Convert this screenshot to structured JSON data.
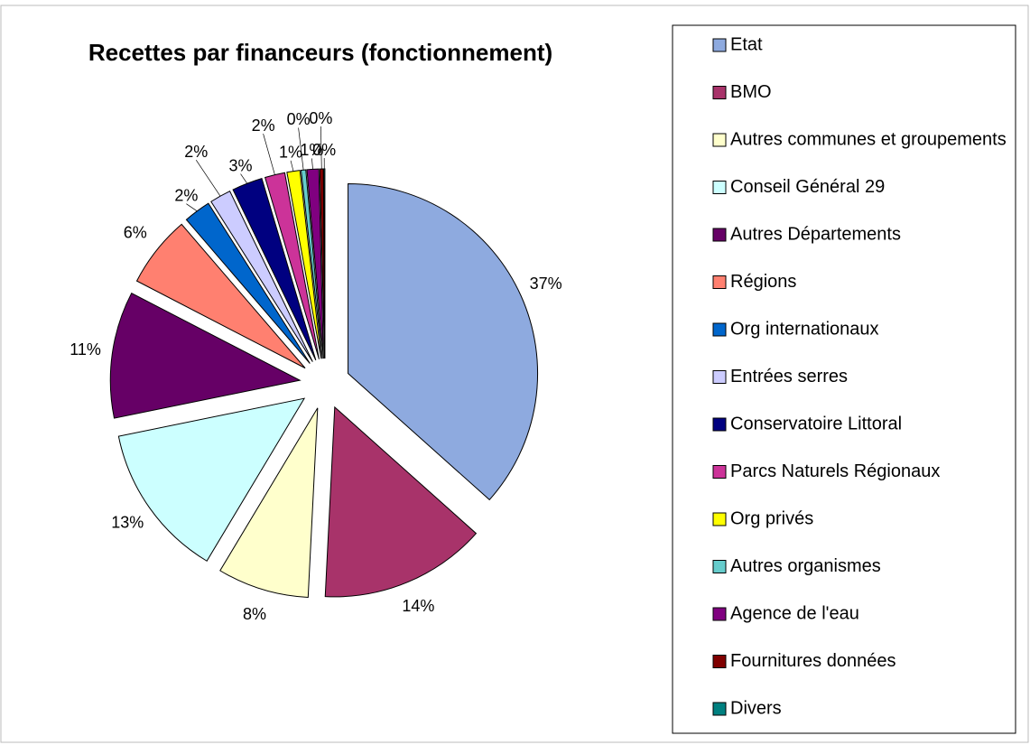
{
  "chart_data": {
    "type": "pie",
    "title": "Recettes par financeurs (fonctionnement)",
    "categories": [
      "Etat",
      "BMO",
      "Autres communes et groupements",
      "Conseil Général 29",
      "Autres Départements",
      "Régions",
      "Org internationaux",
      "Entrées serres",
      "Conservatoire Littoral",
      "Parcs Naturels Régionaux",
      "Org privés",
      "Autres organismes",
      "Agence de l'eau",
      "Fournitures données",
      "Divers"
    ],
    "values": [
      36.6,
      14.2,
      7.8,
      13.2,
      10.8,
      6.1,
      2.3,
      1.8,
      2.6,
      1.7,
      1.1,
      0.4,
      1.0,
      0.3,
      0.1
    ],
    "value_labels": [
      "37%",
      "14%",
      "8%",
      "13%",
      "11%",
      "6%",
      "2%",
      "2%",
      "3%",
      "2%",
      "1%",
      "0%",
      "1%",
      "0%",
      "0%"
    ],
    "colors": [
      "#8eaadf",
      "#a8336a",
      "#ffffcc",
      "#ccffff",
      "#660066",
      "#ff8070",
      "#0066cc",
      "#ccccff",
      "#000080",
      "#cc3399",
      "#ffff00",
      "#66cccc",
      "#800080",
      "#800000",
      "#008080"
    ],
    "legend": "right"
  }
}
